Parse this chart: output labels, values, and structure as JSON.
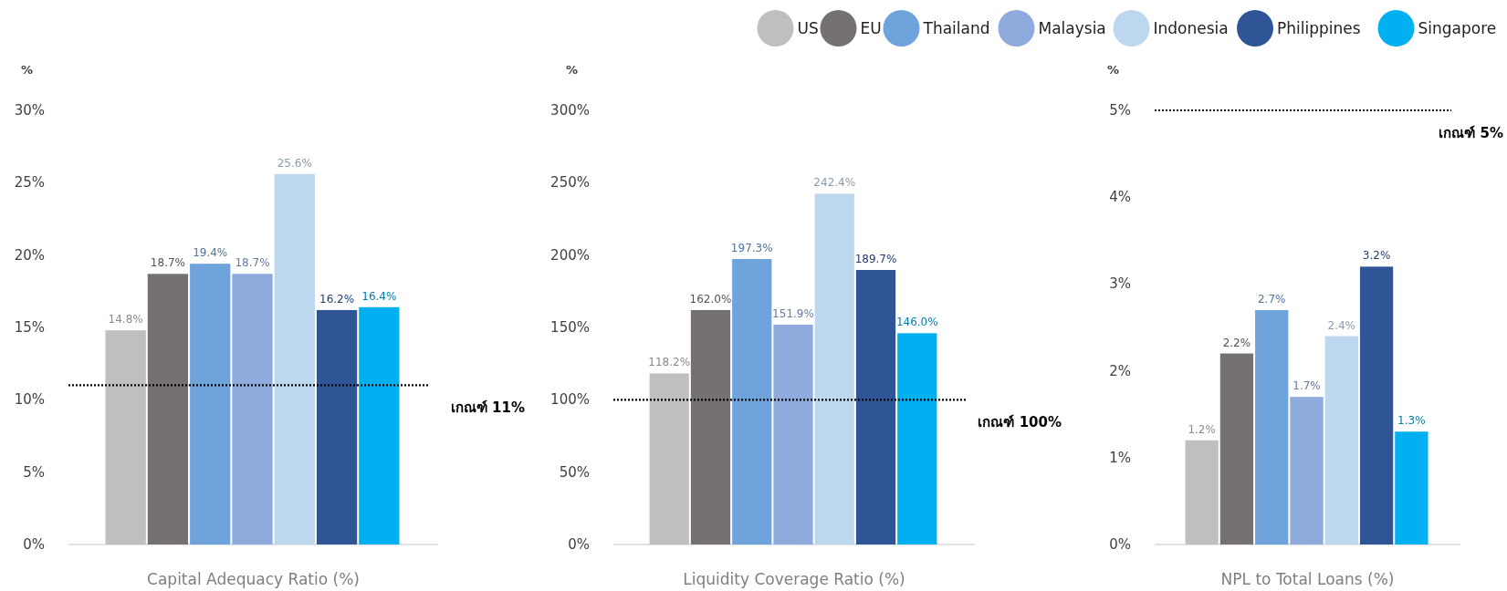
{
  "chart_data": [
    {
      "type": "bar",
      "xlabel": "Capital Adequacy Ratio (%)",
      "ylabel": "%",
      "categories": [
        null
      ],
      "ylim": [
        0,
        30
      ],
      "yticks": [
        {
          "value": 0,
          "label": "0%"
        },
        {
          "value": 5,
          "label": "5%"
        },
        {
          "value": 10,
          "label": "10%"
        },
        {
          "value": 15,
          "label": "15%"
        },
        {
          "value": 20,
          "label": "20%"
        },
        {
          "value": 25,
          "label": "25%"
        },
        {
          "value": 30,
          "label": "30%"
        }
      ],
      "legend": "top",
      "grid": false,
      "series": [
        {
          "name": "US",
          "color": "#bfbfbf",
          "values": [
            14.8
          ],
          "value_labels": [
            "14.8%"
          ]
        },
        {
          "name": "EU",
          "color": "#767171",
          "values": [
            18.7
          ],
          "value_labels": [
            "18.7%"
          ]
        },
        {
          "name": "Thailand",
          "color": "#6fa3dc",
          "values": [
            19.4
          ],
          "value_labels": [
            "19.4%"
          ]
        },
        {
          "name": "Malaysia",
          "color": "#8faadc",
          "values": [
            18.7
          ],
          "value_labels": [
            "18.7%"
          ]
        },
        {
          "name": "Indonesia",
          "color": "#bdd7ee",
          "values": [
            25.6
          ],
          "value_labels": [
            "25.6%"
          ]
        },
        {
          "name": "Philippines",
          "color": "#2f5597",
          "values": [
            16.2
          ],
          "value_labels": [
            "16.2%"
          ]
        },
        {
          "name": "Singapore",
          "color": "#00b0f0",
          "values": [
            16.4
          ],
          "value_labels": [
            "16.4%"
          ]
        }
      ],
      "ref_lines": [
        {
          "axis": "y",
          "value": 11,
          "label": "เกณฑ์ 11%",
          "color": "#000000",
          "line_style": "dotted"
        }
      ]
    },
    {
      "type": "bar",
      "xlabel": "Liquidity Coverage Ratio (%)",
      "ylabel": "%",
      "categories": [
        null
      ],
      "ylim": [
        0,
        300
      ],
      "yticks": [
        {
          "value": 0,
          "label": "0%"
        },
        {
          "value": 50,
          "label": "50%"
        },
        {
          "value": 100,
          "label": "100%"
        },
        {
          "value": 150,
          "label": "150%"
        },
        {
          "value": 200,
          "label": "200%"
        },
        {
          "value": 250,
          "label": "250%"
        },
        {
          "value": 300,
          "label": "300%"
        }
      ],
      "grid": false,
      "series": [
        {
          "color": "#bfbfbf",
          "values": [
            118.2
          ],
          "value_labels": [
            "118.2%"
          ]
        },
        {
          "color": "#767171",
          "values": [
            162.0
          ],
          "value_labels": [
            "162.0%"
          ]
        },
        {
          "color": "#6fa3dc",
          "values": [
            197.3
          ],
          "value_labels": [
            "197.3%"
          ]
        },
        {
          "color": "#8faadc",
          "values": [
            151.9
          ],
          "value_labels": [
            "151.9%"
          ]
        },
        {
          "color": "#bdd7ee",
          "values": [
            242.4
          ],
          "value_labels": [
            "242.4%"
          ]
        },
        {
          "color": "#2f5597",
          "values": [
            189.7
          ],
          "value_labels": [
            "189.7%"
          ]
        },
        {
          "color": "#00b0f0",
          "values": [
            146.0
          ],
          "value_labels": [
            "146.0%"
          ]
        }
      ],
      "ref_lines": [
        {
          "axis": "y",
          "value": 100,
          "label": "เกณฑ์ 100%",
          "color": "#000000",
          "line_style": "dotted"
        }
      ]
    },
    {
      "type": "bar",
      "xlabel": "NPL to Total Loans (%)",
      "ylabel": "%",
      "categories": [
        null
      ],
      "ylim": [
        0,
        5
      ],
      "yticks": [
        {
          "value": 0,
          "label": "0%"
        },
        {
          "value": 1,
          "label": "1%"
        },
        {
          "value": 2,
          "label": "2%"
        },
        {
          "value": 3,
          "label": "3%"
        },
        {
          "value": 4,
          "label": "4%"
        },
        {
          "value": 5,
          "label": "5%"
        }
      ],
      "grid": false,
      "series": [
        {
          "color": "#bfbfbf",
          "values": [
            1.2
          ],
          "value_labels": [
            "1.2%"
          ]
        },
        {
          "color": "#767171",
          "values": [
            2.2
          ],
          "value_labels": [
            "2.2%"
          ]
        },
        {
          "color": "#6fa3dc",
          "values": [
            2.7
          ],
          "value_labels": [
            "2.7%"
          ]
        },
        {
          "color": "#8faadc",
          "values": [
            1.7
          ],
          "value_labels": [
            "1.7%"
          ]
        },
        {
          "color": "#bdd7ee",
          "values": [
            2.4
          ],
          "value_labels": [
            "2.4%"
          ]
        },
        {
          "color": "#2f5597",
          "values": [
            3.2
          ],
          "value_labels": [
            "3.2%"
          ]
        },
        {
          "color": "#00b0f0",
          "values": [
            1.3
          ],
          "value_labels": [
            "1.3%"
          ]
        }
      ],
      "ref_lines": [
        {
          "axis": "y",
          "value": 5,
          "label": "เกณฑ์ 5%",
          "color": "#000000",
          "line_style": "dotted"
        }
      ]
    }
  ]
}
